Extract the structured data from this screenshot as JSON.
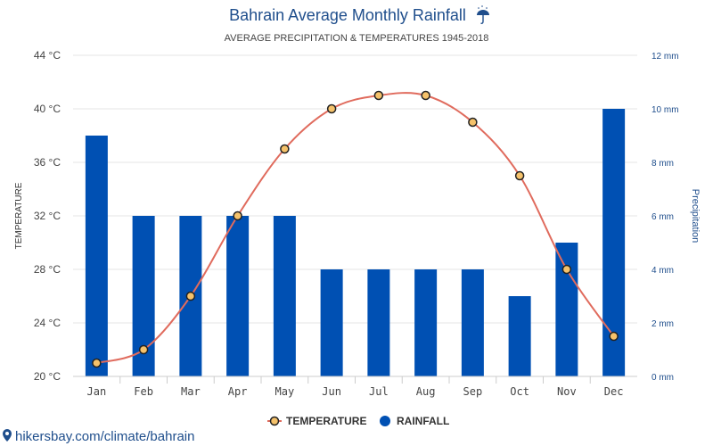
{
  "title": "Bahrain Average Monthly Rainfall",
  "subtitle": "AVERAGE PRECIPITATION & TEMPERATURES 1945-2018",
  "footer": "hikersbay.com/climate/bahrain",
  "icons": {
    "title_icon": "umbrella-icon",
    "footer_icon": "location-pin-icon"
  },
  "colors": {
    "bar": "#0050b3",
    "line": "#e06b5d",
    "marker_fill": "#f5c26b",
    "marker_stroke": "#222222",
    "title": "#1f4e8c"
  },
  "chart_data": {
    "type": "bar",
    "categories": [
      "Jan",
      "Feb",
      "Mar",
      "Apr",
      "May",
      "Jun",
      "Jul",
      "Aug",
      "Sep",
      "Oct",
      "Nov",
      "Dec"
    ],
    "series": [
      {
        "name": "RAINFALL",
        "type": "bar",
        "axis": "right",
        "values": [
          9,
          6,
          6,
          6,
          6,
          4,
          4,
          4,
          4,
          3,
          5,
          10
        ]
      },
      {
        "name": "TEMPERATURE",
        "type": "line",
        "axis": "left",
        "values": [
          21,
          22,
          26,
          32,
          37,
          40,
          41,
          41,
          39,
          35,
          28,
          23
        ]
      }
    ],
    "y_left": {
      "label": "TEMPERATURE",
      "range": [
        20,
        44
      ],
      "ticks": [
        "20 °C",
        "24 °C",
        "28 °C",
        "32 °C",
        "36 °C",
        "40 °C",
        "44 °C"
      ]
    },
    "y_right": {
      "label": "Precipitation",
      "range": [
        0,
        12
      ],
      "ticks": [
        "0 mm",
        "2 mm",
        "4 mm",
        "6 mm",
        "8 mm",
        "10 mm",
        "12 mm"
      ]
    },
    "legend": {
      "position": "bottom-center",
      "items": [
        "TEMPERATURE",
        "RAINFALL"
      ]
    },
    "grid": true
  }
}
